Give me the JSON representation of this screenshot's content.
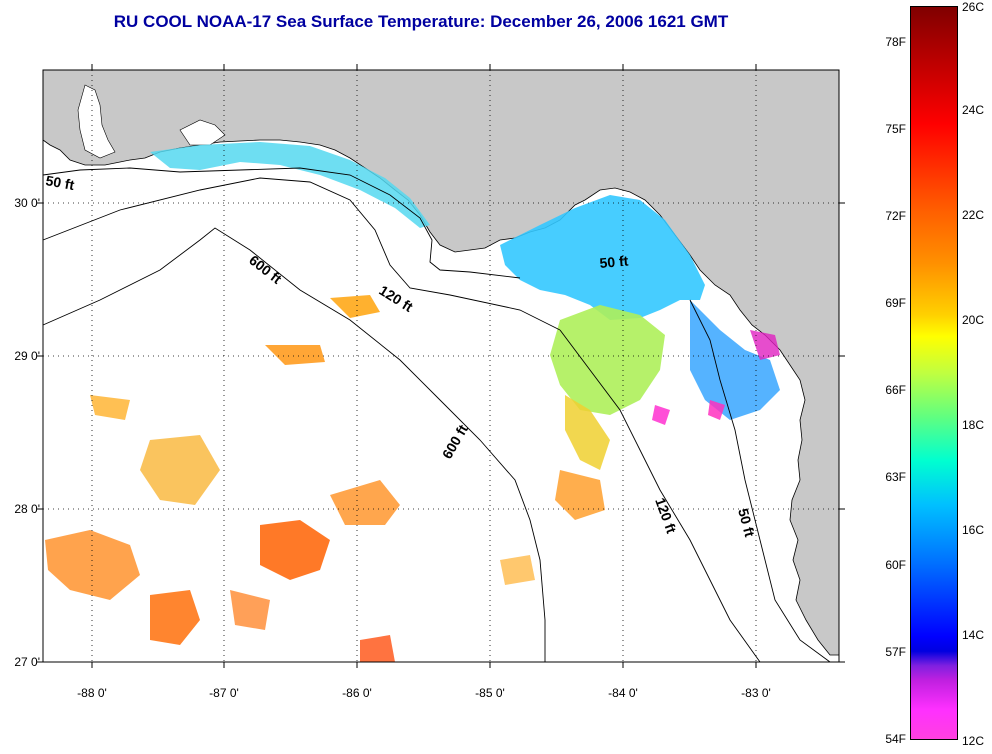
{
  "title": "RU COOL  NOAA-17  Sea Surface Temperature:  December 26, 2006 1621 GMT",
  "map": {
    "lat_labels": [
      "30 0'",
      "29 0'",
      "28 0'",
      "27 0'"
    ],
    "lon_labels": [
      "-88 0'",
      "-87 0'",
      "-86 0'",
      "-85 0'",
      "-84 0'",
      "-83 0'"
    ],
    "lat_values": [
      30,
      29,
      28,
      27
    ],
    "lon_values": [
      -88,
      -87,
      -86,
      -85,
      -84,
      -83
    ],
    "contour_labels": [
      "50 ft",
      "600 ft",
      "120 ft",
      "50 ft",
      "600 ft",
      "120 ft",
      "50 ft"
    ],
    "land_color": "#c8c8c8",
    "ocean_color": "#ffffff"
  },
  "colorbar": {
    "celsius_labels": [
      "26C",
      "24C",
      "22C",
      "20C",
      "18C",
      "16C",
      "14C",
      "12C"
    ],
    "fahrenheit_labels": [
      "78F",
      "75F",
      "72F",
      "69F",
      "66F",
      "63F",
      "60F",
      "57F",
      "54F"
    ],
    "range_c": [
      12,
      26
    ],
    "range_f": [
      54,
      78
    ]
  }
}
